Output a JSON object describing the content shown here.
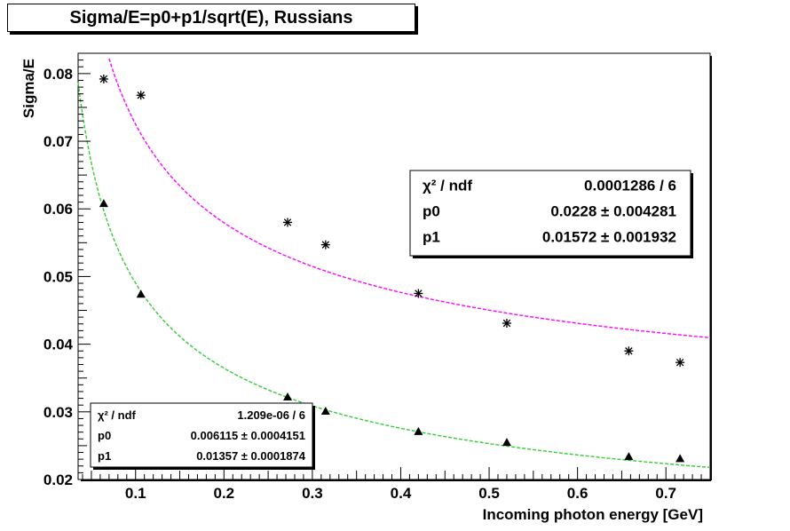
{
  "title": "Sigma/E=p0+p1/sqrt(E), Russians",
  "chart_data": {
    "type": "scatter",
    "xlabel": "Incoming photon energy [GeV]",
    "ylabel": "Sigma/E",
    "xlim": [
      0.035,
      0.75
    ],
    "ylim": [
      0.02,
      0.083
    ],
    "xticks": [
      0.1,
      0.2,
      0.3,
      0.4,
      0.5,
      0.6,
      0.7
    ],
    "xtick_labels": [
      "0.1",
      "0.2",
      "0.3",
      "0.4",
      "0.5",
      "0.6",
      "0.7"
    ],
    "yticks": [
      0.02,
      0.03,
      0.04,
      0.05,
      0.06,
      0.07,
      0.08
    ],
    "ytick_labels": [
      "0.02",
      "0.03",
      "0.04",
      "0.05",
      "0.06",
      "0.07",
      "0.08"
    ],
    "grid": false,
    "series": [
      {
        "marker": "star",
        "color": "#000000",
        "x": [
          0.064,
          0.106,
          0.272,
          0.315,
          0.42,
          0.52,
          0.658,
          0.716
        ],
        "y": [
          0.0792,
          0.0768,
          0.058,
          0.0547,
          0.0475,
          0.0431,
          0.039,
          0.0373
        ],
        "fit": {
          "p0": 0.0228,
          "p1": 0.01572,
          "color": "#ff00ff",
          "x_range": [
            0.07,
            0.75
          ]
        }
      },
      {
        "marker": "triangle",
        "color": "#000000",
        "x": [
          0.064,
          0.106,
          0.272,
          0.315,
          0.42,
          0.52,
          0.658,
          0.716
        ],
        "y": [
          0.0608,
          0.0474,
          0.0322,
          0.0301,
          0.0271,
          0.0255,
          0.0234,
          0.0231
        ],
        "fit": {
          "p0": 0.006115,
          "p1": 0.01357,
          "color": "#33cc33",
          "x_range": [
            0.035,
            0.75
          ]
        }
      }
    ],
    "stats_boxes": [
      {
        "rows": [
          {
            "label": "χ² / ndf",
            "value": "0.0001286 / 6"
          },
          {
            "label": "p0",
            "value": "0.0228 ± 0.004281"
          },
          {
            "label": "p1",
            "value": "0.01572 ± 0.001932"
          }
        ]
      },
      {
        "rows": [
          {
            "label": "χ² / ndf",
            "value": "1.209e-06 / 6"
          },
          {
            "label": "p0",
            "value": "0.006115 ± 0.0004151"
          },
          {
            "label": "p1",
            "value": "0.01357 ± 0.0001874"
          }
        ]
      }
    ]
  }
}
